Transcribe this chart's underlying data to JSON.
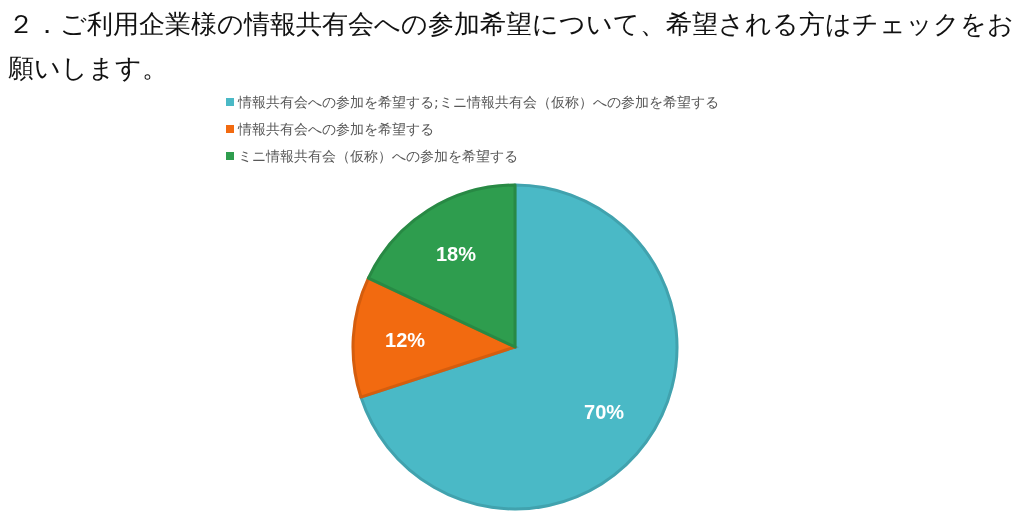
{
  "chart_data": {
    "type": "pie",
    "title": "２．ご利用企業様の情報共有会への参加希望について、希望される方はチェックをお願いします。",
    "categories": [
      "情報共有会への参加を希望する;ミニ情報共有会（仮称）への参加を希望する",
      "情報共有会への参加を希望する",
      "ミニ情報共有会（仮称）への参加を希望する"
    ],
    "values": [
      70,
      12,
      18
    ],
    "value_labels": [
      "70%",
      "12%",
      "18%"
    ],
    "colors": [
      "#4ab9c6",
      "#f26a10",
      "#2e9d4e"
    ],
    "legend": "top"
  }
}
